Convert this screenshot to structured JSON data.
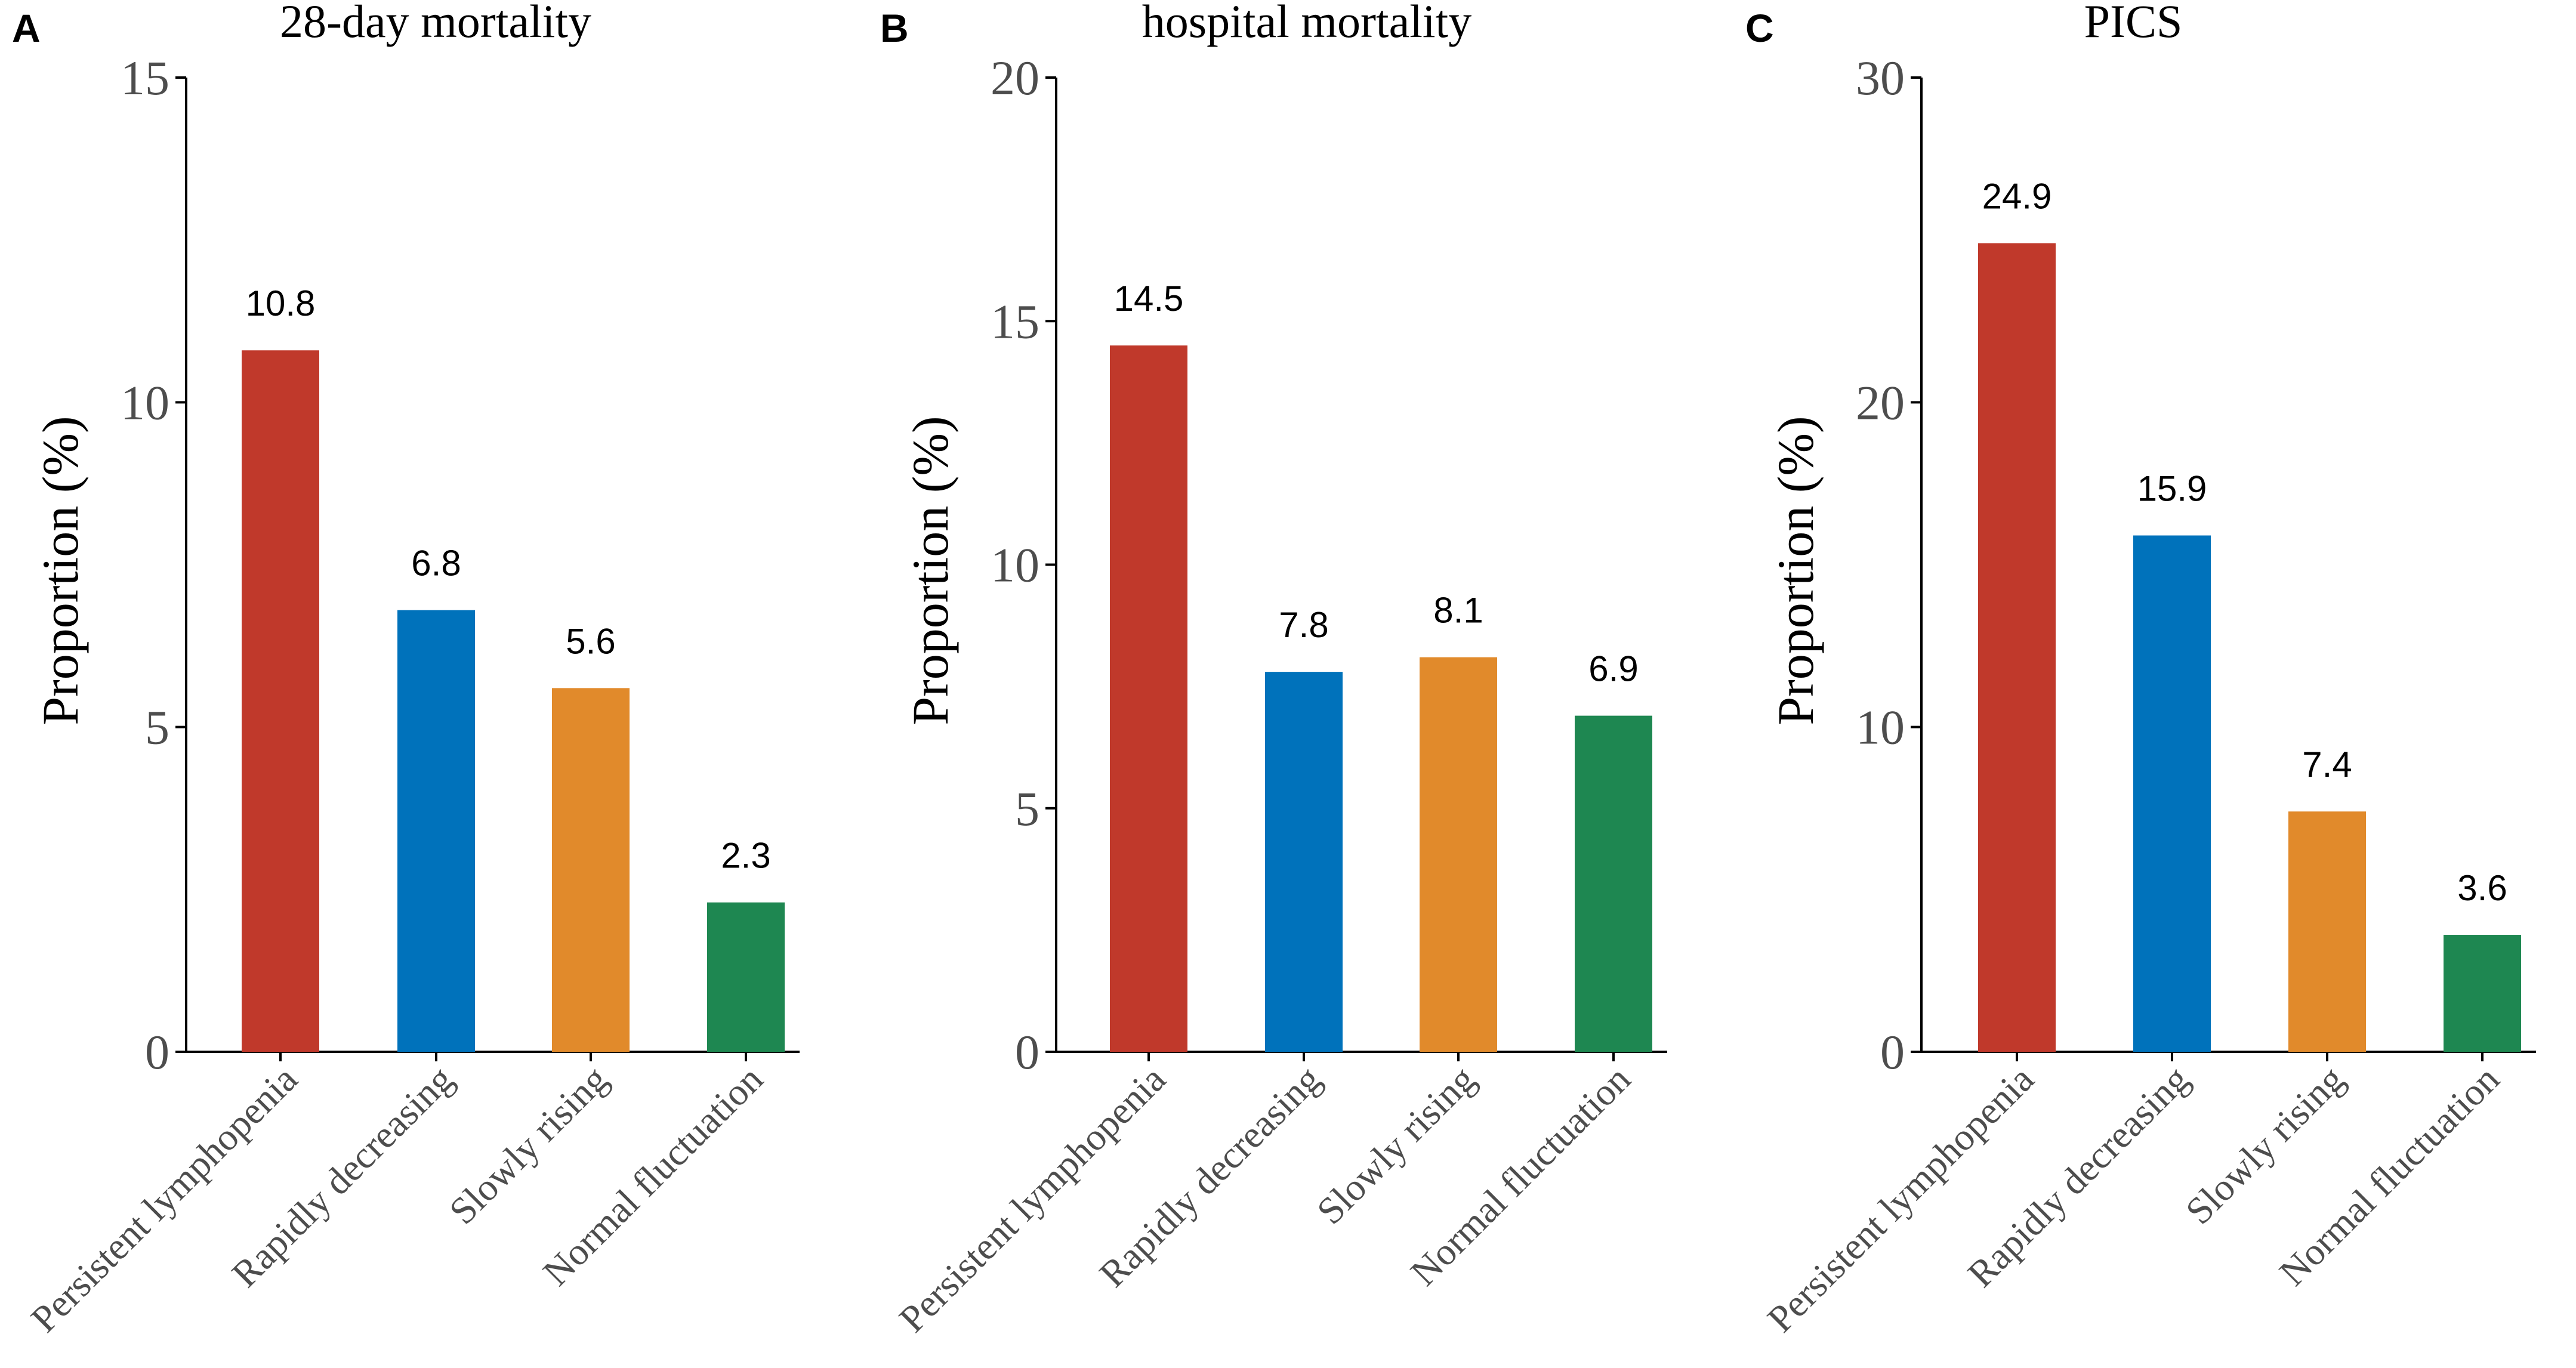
{
  "chart_data": [
    {
      "type": "bar",
      "panel": "A",
      "title": "28-day mortality",
      "xlabel": "",
      "ylabel": "Proportion (%)",
      "ylim": [
        0,
        15
      ],
      "yticks": [
        0,
        5,
        10,
        15
      ],
      "categories": [
        "Persistent lymphopenia",
        "Rapidly decreasing",
        "Slowly rising",
        "Normal fluctuation"
      ],
      "values": [
        10.8,
        6.8,
        5.6,
        2.3
      ],
      "value_labels": [
        "10.8",
        "6.8",
        "5.6",
        "2.3"
      ],
      "colors": [
        "#C0392B",
        "#0072BB",
        "#E18A2B",
        "#1E8751"
      ],
      "grid": false
    },
    {
      "type": "bar",
      "panel": "B",
      "title": "hospital mortality",
      "xlabel": "",
      "ylabel": "Proportion (%)",
      "ylim": [
        0,
        20
      ],
      "yticks": [
        0,
        5,
        10,
        15,
        20
      ],
      "categories": [
        "Persistent lymphopenia",
        "Rapidly decreasing",
        "Slowly rising",
        "Normal fluctuation"
      ],
      "values": [
        14.5,
        7.8,
        8.1,
        6.9
      ],
      "value_labels": [
        "14.5",
        "7.8",
        "8.1",
        "6.9"
      ],
      "colors": [
        "#C0392B",
        "#0072BB",
        "#E18A2B",
        "#1E8751"
      ],
      "grid": false
    },
    {
      "type": "bar",
      "panel": "C",
      "title": "PICS",
      "xlabel": "",
      "ylabel": "Proportion (%)",
      "ylim": [
        0,
        30
      ],
      "yticks": [
        0,
        10,
        20,
        30
      ],
      "categories": [
        "Persistent lymphopenia",
        "Rapidly decreasing",
        "Slowly rising",
        "Normal fluctuation"
      ],
      "values": [
        24.9,
        15.9,
        7.4,
        3.6
      ],
      "value_labels": [
        "24.9",
        "15.9",
        "7.4",
        "3.6"
      ],
      "colors": [
        "#C0392B",
        "#0072BB",
        "#E18A2B",
        "#1E8751"
      ],
      "grid": false
    }
  ]
}
